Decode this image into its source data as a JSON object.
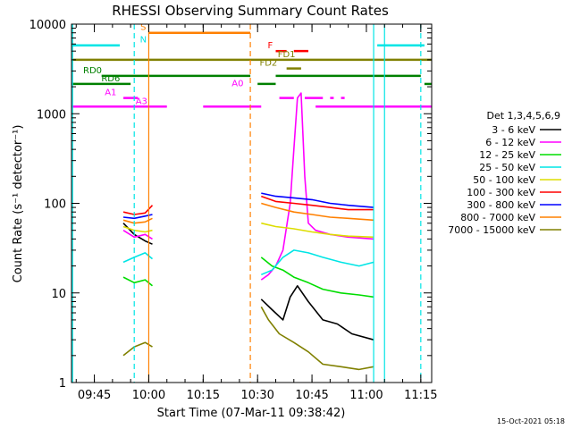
{
  "chart_data": {
    "type": "line",
    "title": "RHESSI Observing Summary Count Rates",
    "xlabel": "Start Time (07-Mar-11 09:38:42)",
    "ylabel": "Count Rate (s⁻¹ detector⁻¹)",
    "y_scale": "log",
    "ylim": [
      1,
      10000
    ],
    "xlim": [
      "09:38:42",
      "11:18:00"
    ],
    "x_ticks": [
      "09:45",
      "10:00",
      "10:15",
      "10:30",
      "10:45",
      "11:00",
      "11:15"
    ],
    "y_ticks": [
      "1",
      "10",
      "100",
      "1000",
      "10000"
    ],
    "legend_title": "Det 1,3,4,5,6,9",
    "legend_position": "right",
    "series": [
      {
        "name": "3 - 6 keV",
        "color": "#000000",
        "segments": [
          [
            [
              "09:53",
              60
            ],
            [
              "09:56",
              45
            ],
            [
              "09:59",
              38
            ],
            [
              "10:01",
              35
            ]
          ],
          [
            [
              "10:31",
              8.5
            ],
            [
              "10:34",
              6.5
            ],
            [
              "10:37",
              5
            ],
            [
              "10:39",
              9
            ],
            [
              "10:41",
              12
            ],
            [
              "10:44",
              8
            ],
            [
              "10:48",
              5
            ],
            [
              "10:52",
              4.5
            ],
            [
              "10:56",
              3.5
            ],
            [
              "11:02",
              3
            ]
          ]
        ]
      },
      {
        "name": "6 - 12 keV",
        "color": "#ff00ff",
        "segments": [
          [
            [
              "09:53",
              50
            ],
            [
              "09:56",
              42
            ],
            [
              "09:59",
              45
            ],
            [
              "10:01",
              40
            ]
          ],
          [
            [
              "10:31",
              14
            ],
            [
              "10:33",
              16
            ],
            [
              "10:35",
              20
            ],
            [
              "10:37",
              30
            ],
            [
              "10:39",
              100
            ],
            [
              "10:40",
              400
            ],
            [
              "10:41",
              1500
            ],
            [
              "10:42",
              1700
            ],
            [
              "10:43",
              200
            ],
            [
              "10:44",
              60
            ],
            [
              "10:46",
              50
            ],
            [
              "10:50",
              45
            ],
            [
              "10:55",
              42
            ],
            [
              "11:02",
              40
            ]
          ]
        ]
      },
      {
        "name": "12 - 25 keV",
        "color": "#00dd00",
        "segments": [
          [
            [
              "09:53",
              15
            ],
            [
              "09:56",
              13
            ],
            [
              "09:59",
              14
            ],
            [
              "10:01",
              12
            ]
          ],
          [
            [
              "10:31",
              25
            ],
            [
              "10:34",
              20
            ],
            [
              "10:37",
              18
            ],
            [
              "10:40",
              15
            ],
            [
              "10:44",
              13
            ],
            [
              "10:48",
              11
            ],
            [
              "10:53",
              10
            ],
            [
              "10:58",
              9.5
            ],
            [
              "11:02",
              9
            ]
          ]
        ]
      },
      {
        "name": "25 - 50 keV",
        "color": "#00e5e5",
        "segments": [
          [
            [
              "09:53",
              22
            ],
            [
              "09:56",
              25
            ],
            [
              "09:59",
              28
            ],
            [
              "10:01",
              24
            ]
          ],
          [
            [
              "10:31",
              16
            ],
            [
              "10:34",
              18
            ],
            [
              "10:37",
              25
            ],
            [
              "10:40",
              30
            ],
            [
              "10:44",
              28
            ],
            [
              "10:48",
              25
            ],
            [
              "10:53",
              22
            ],
            [
              "10:58",
              20
            ],
            [
              "11:02",
              22
            ]
          ]
        ]
      },
      {
        "name": "50 - 100 keV",
        "color": "#dddd00",
        "segments": [
          [
            [
              "09:53",
              55
            ],
            [
              "09:56",
              50
            ],
            [
              "09:59",
              48
            ],
            [
              "10:01",
              50
            ]
          ],
          [
            [
              "10:31",
              60
            ],
            [
              "10:35",
              55
            ],
            [
              "10:40",
              52
            ],
            [
              "10:45",
              48
            ],
            [
              "10:50",
              45
            ],
            [
              "10:55",
              43
            ],
            [
              "11:02",
              42
            ]
          ]
        ]
      },
      {
        "name": "100 - 300 keV",
        "color": "#ff0000",
        "segments": [
          [
            [
              "09:53",
              80
            ],
            [
              "09:56",
              75
            ],
            [
              "09:59",
              78
            ],
            [
              "10:01",
              95
            ]
          ],
          [
            [
              "10:31",
              120
            ],
            [
              "10:35",
              105
            ],
            [
              "10:40",
              100
            ],
            [
              "10:45",
              95
            ],
            [
              "10:50",
              90
            ],
            [
              "10:55",
              85
            ],
            [
              "11:02",
              85
            ]
          ]
        ]
      },
      {
        "name": "300 - 800 keV",
        "color": "#0000ff",
        "segments": [
          [
            [
              "09:53",
              70
            ],
            [
              "09:56",
              68
            ],
            [
              "09:59",
              72
            ],
            [
              "10:01",
              75
            ]
          ],
          [
            [
              "10:31",
              130
            ],
            [
              "10:35",
              120
            ],
            [
              "10:40",
              115
            ],
            [
              "10:45",
              110
            ],
            [
              "10:50",
              100
            ],
            [
              "10:55",
              95
            ],
            [
              "11:02",
              90
            ]
          ]
        ]
      },
      {
        "name": "800 - 7000 keV",
        "color": "#ff8000",
        "segments": [
          [
            [
              "09:53",
              65
            ],
            [
              "09:56",
              60
            ],
            [
              "09:59",
              62
            ],
            [
              "10:01",
              68
            ]
          ],
          [
            [
              "10:31",
              100
            ],
            [
              "10:35",
              90
            ],
            [
              "10:40",
              80
            ],
            [
              "10:45",
              75
            ],
            [
              "10:50",
              70
            ],
            [
              "10:55",
              68
            ],
            [
              "11:02",
              65
            ]
          ]
        ]
      },
      {
        "name": "7000 - 15000 keV",
        "color": "#808000",
        "segments": [
          [
            [
              "09:53",
              2
            ],
            [
              "09:56",
              2.5
            ],
            [
              "09:59",
              2.8
            ],
            [
              "10:01",
              2.5
            ]
          ],
          [
            [
              "10:31",
              7
            ],
            [
              "10:33",
              5
            ],
            [
              "10:36",
              3.5
            ],
            [
              "10:40",
              2.8
            ],
            [
              "10:44",
              2.2
            ],
            [
              "10:48",
              1.6
            ],
            [
              "10:53",
              1.5
            ],
            [
              "10:58",
              1.4
            ],
            [
              "11:02",
              1.5
            ]
          ]
        ]
      }
    ],
    "flag_bars": [
      {
        "label": "S",
        "color": "#ff8000",
        "y": 8000,
        "label_time": "09:58:30",
        "intervals": [
          [
            "10:00",
            "10:28"
          ]
        ]
      },
      {
        "label": "N",
        "color": "#00e5e5",
        "y": 5800,
        "label_time": "09:58:30",
        "intervals": [
          [
            "09:38:42",
            "09:52"
          ],
          [
            "11:03",
            "11:16"
          ]
        ]
      },
      {
        "label": "F",
        "color": "#ff0000",
        "y": 5000,
        "label_time": "10:33:30",
        "intervals": [
          [
            "10:35",
            "10:38"
          ],
          [
            "10:40",
            "10:44"
          ]
        ]
      },
      {
        "label": "FD1",
        "color": "#808000",
        "y": 4000,
        "label_time": "10:38",
        "intervals": [
          [
            "09:38:42",
            "11:18"
          ]
        ]
      },
      {
        "label": "FD2",
        "color": "#808000",
        "y": 3200,
        "label_time": "10:33",
        "intervals": [
          [
            "10:38",
            "10:42"
          ]
        ]
      },
      {
        "label": "RD0",
        "color": "#008000",
        "y": 2650,
        "label_time": "09:44:30",
        "intervals": [
          [
            "09:47",
            "10:28"
          ],
          [
            "10:35",
            "11:15"
          ]
        ]
      },
      {
        "label": "RD6",
        "color": "#008000",
        "y": 2150,
        "label_time": "09:49:30",
        "intervals": [
          [
            "09:38:42",
            "09:55"
          ],
          [
            "10:30",
            "10:35"
          ],
          [
            "11:16",
            "11:18"
          ]
        ]
      },
      {
        "label": "A1",
        "color": "#ff00ff",
        "y": 1500,
        "label_time": "09:49:30",
        "intervals": [
          [
            "09:53",
            "09:57"
          ],
          [
            "10:36",
            "10:40"
          ],
          [
            "10:43",
            "10:48"
          ],
          [
            "10:50",
            "10:51"
          ],
          [
            "10:53",
            "10:54"
          ]
        ]
      },
      {
        "label": "A0",
        "color": "#ff00ff",
        "y": 1900,
        "label_time": "10:24:30",
        "intervals": []
      },
      {
        "label": "A3",
        "color": "#ff00ff",
        "y": 1200,
        "label_time": "09:58",
        "intervals": [
          [
            "09:38:42",
            "10:05"
          ],
          [
            "10:15",
            "10:31"
          ],
          [
            "10:46",
            "11:18"
          ]
        ]
      }
    ],
    "vertical_markers": [
      {
        "time": "09:39",
        "color": "#00e5e5",
        "dash": false
      },
      {
        "time": "09:56",
        "color": "#00e5e5",
        "dash": true
      },
      {
        "time": "10:00",
        "color": "#ff8000",
        "dash": false
      },
      {
        "time": "10:28",
        "color": "#ff8000",
        "dash": true
      },
      {
        "time": "11:02",
        "color": "#00e5e5",
        "dash": false
      },
      {
        "time": "11:05",
        "color": "#00e5e5",
        "dash": false
      },
      {
        "time": "11:15",
        "color": "#00e5e5",
        "dash": true
      }
    ]
  },
  "footer_timestamp": "15-Oct-2021 05:18"
}
